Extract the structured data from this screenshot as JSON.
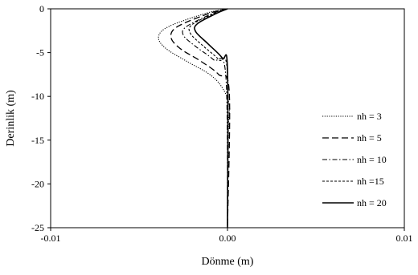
{
  "chart_data": {
    "type": "line",
    "title": "",
    "xlabel": "Dönme (m)",
    "ylabel": "Derinlik (m)",
    "xlim": [
      -0.01,
      0.01
    ],
    "ylim": [
      -25,
      0
    ],
    "x_ticks": [
      "-0.01",
      "0.00",
      "0.01"
    ],
    "x_tick_values": [
      -0.01,
      0.0,
      0.01
    ],
    "y_ticks": [
      "0",
      "-5",
      "-10",
      "-15",
      "-20",
      "-25"
    ],
    "y_tick_values": [
      0,
      -5,
      -10,
      -15,
      -20,
      -25
    ],
    "grid": false,
    "legend_position": "right",
    "series": [
      {
        "name": "nh = 3",
        "style": "dotted",
        "points": [
          [
            0.0,
            0
          ],
          [
            -0.0012,
            -0.5
          ],
          [
            -0.0033,
            -2.0
          ],
          [
            -0.0039,
            -3.2
          ],
          [
            -0.0035,
            -4.5
          ],
          [
            -0.0023,
            -6.0
          ],
          [
            -0.001,
            -7.5
          ],
          [
            -0.0003,
            -9.0
          ],
          [
            0.0001,
            -11.0
          ],
          [
            5e-05,
            -14.0
          ],
          [
            0.0,
            -25
          ]
        ]
      },
      {
        "name": "nh = 5",
        "style": "long-dash",
        "points": [
          [
            0.0,
            0
          ],
          [
            -0.001,
            -0.5
          ],
          [
            -0.0028,
            -2.0
          ],
          [
            -0.0032,
            -3.2
          ],
          [
            -0.0027,
            -4.5
          ],
          [
            -0.0015,
            -6.0
          ],
          [
            -0.0005,
            -7.5
          ],
          [
            0.0001,
            -9.5
          ],
          [
            0.0,
            -25
          ]
        ]
      },
      {
        "name": "nh = 10",
        "style": "dash-dot",
        "points": [
          [
            0.0,
            0
          ],
          [
            -0.0008,
            -0.5
          ],
          [
            -0.0023,
            -2.0
          ],
          [
            -0.0025,
            -3.0
          ],
          [
            -0.0018,
            -4.3
          ],
          [
            -0.0008,
            -5.8
          ],
          [
            -0.0001,
            -7.5
          ],
          [
            0.0,
            -25
          ]
        ]
      },
      {
        "name": "nh =15",
        "style": "short-dash",
        "points": [
          [
            0.0,
            0
          ],
          [
            -0.0007,
            -0.5
          ],
          [
            -0.002,
            -1.8
          ],
          [
            -0.0021,
            -2.8
          ],
          [
            -0.0014,
            -4.2
          ],
          [
            -0.0005,
            -5.8
          ],
          [
            0.0,
            -7.5
          ],
          [
            0.0,
            -25
          ]
        ]
      },
      {
        "name": "nh = 20",
        "style": "solid",
        "points": [
          [
            0.0,
            0
          ],
          [
            -0.0006,
            -0.5
          ],
          [
            -0.0017,
            -1.7
          ],
          [
            -0.0018,
            -2.6
          ],
          [
            -0.0011,
            -4.0
          ],
          [
            -0.0003,
            -5.6
          ],
          [
            0.0,
            -7.0
          ],
          [
            0.0,
            -25
          ]
        ]
      }
    ]
  }
}
